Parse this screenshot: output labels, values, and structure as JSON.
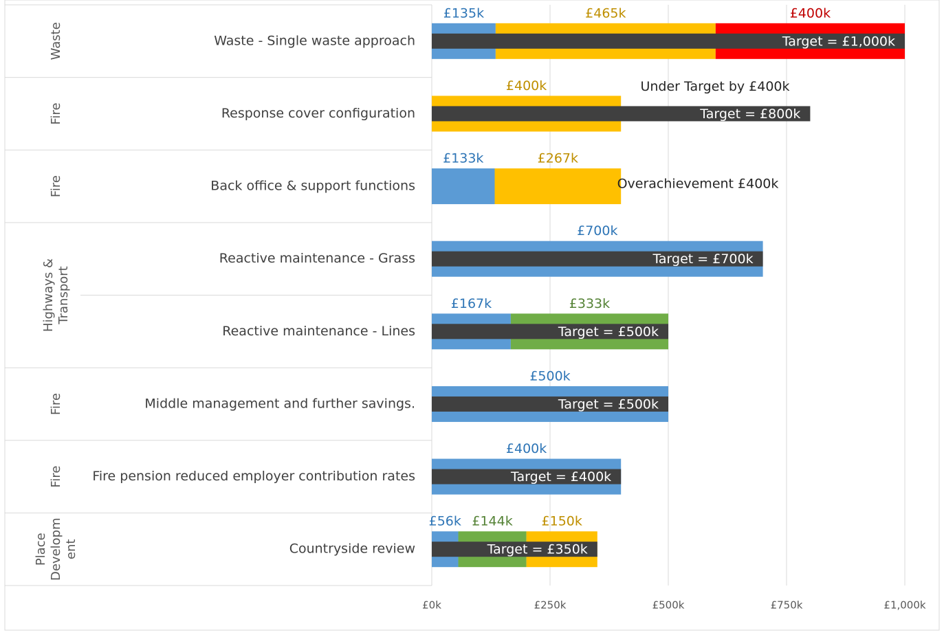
{
  "chart_data": {
    "type": "stacked_bar_target",
    "categories": [
      "Waste - Single waste approach",
      "Response cover configuration",
      "Back office & support functions",
      "Reactive maintenance - Grass",
      "Reactive maintenance - Lines",
      "Middle management and further savings.",
      "Fire pension reduced employer contribution rates",
      "Countryside review"
    ],
    "groups": [
      {
        "label": [
          "Waste"
        ],
        "span": 1
      },
      {
        "label": [
          "Fire"
        ],
        "span": 1
      },
      {
        "label": [
          "Fire"
        ],
        "span": 1
      },
      {
        "label": [
          "Highways &",
          "Transport"
        ],
        "span": 2
      },
      {
        "label": [
          "Fire"
        ],
        "span": 1
      },
      {
        "label": [
          "Fire"
        ],
        "span": 1
      },
      {
        "label": [
          "Place",
          "Developm",
          "ent"
        ],
        "span": 1
      }
    ],
    "series": [
      {
        "color": "#5b9bd5",
        "label_color": "#2e75b6",
        "values": [
          135,
          null,
          133,
          700,
          167,
          500,
          400,
          56
        ],
        "value_labels": [
          "£135k",
          null,
          "£133k",
          "£700k",
          "£167k",
          "£500k",
          "£400k",
          "£56k"
        ]
      },
      {
        "color": "#70ad47",
        "label_color": "#548235",
        "values": [
          null,
          null,
          null,
          null,
          333,
          null,
          null,
          144
        ],
        "value_labels": [
          null,
          null,
          null,
          null,
          "£333k",
          null,
          null,
          "£144k"
        ]
      },
      {
        "color": "#ffc000",
        "label_color": "#bf8f00",
        "values": [
          465,
          400,
          267,
          null,
          null,
          null,
          null,
          150
        ],
        "value_labels": [
          "£465k",
          "£400k",
          "£267k",
          null,
          null,
          null,
          null,
          "£150k"
        ]
      },
      {
        "color": "#ff0000",
        "label_color": "#c00000",
        "values": [
          400,
          null,
          null,
          null,
          null,
          null,
          null,
          null
        ],
        "value_labels": [
          "£400k",
          null,
          null,
          null,
          null,
          null,
          null,
          null
        ]
      }
    ],
    "target": {
      "color": "#404040",
      "values": [
        1000,
        800,
        null,
        700,
        500,
        500,
        400,
        350
      ],
      "value_labels": [
        "Target =  £1,000k",
        "Target =  £800k",
        null,
        "Target =  £700k",
        "Target =  £500k",
        "Target =  £500k",
        "Target =  £400k",
        "Target =  £350k"
      ]
    },
    "annotations": [
      "Under Target by £400k",
      "Overachievement £400k"
    ],
    "xlim": [
      0,
      1000
    ],
    "xticks": [
      {
        "value": 0,
        "label": "£0k"
      },
      {
        "value": 250,
        "label": "£250k"
      },
      {
        "value": 500,
        "label": "£500k"
      },
      {
        "value": 750,
        "label": "£750k"
      },
      {
        "value": 1000,
        "label": "£1,000k"
      }
    ],
    "grid": true
  }
}
